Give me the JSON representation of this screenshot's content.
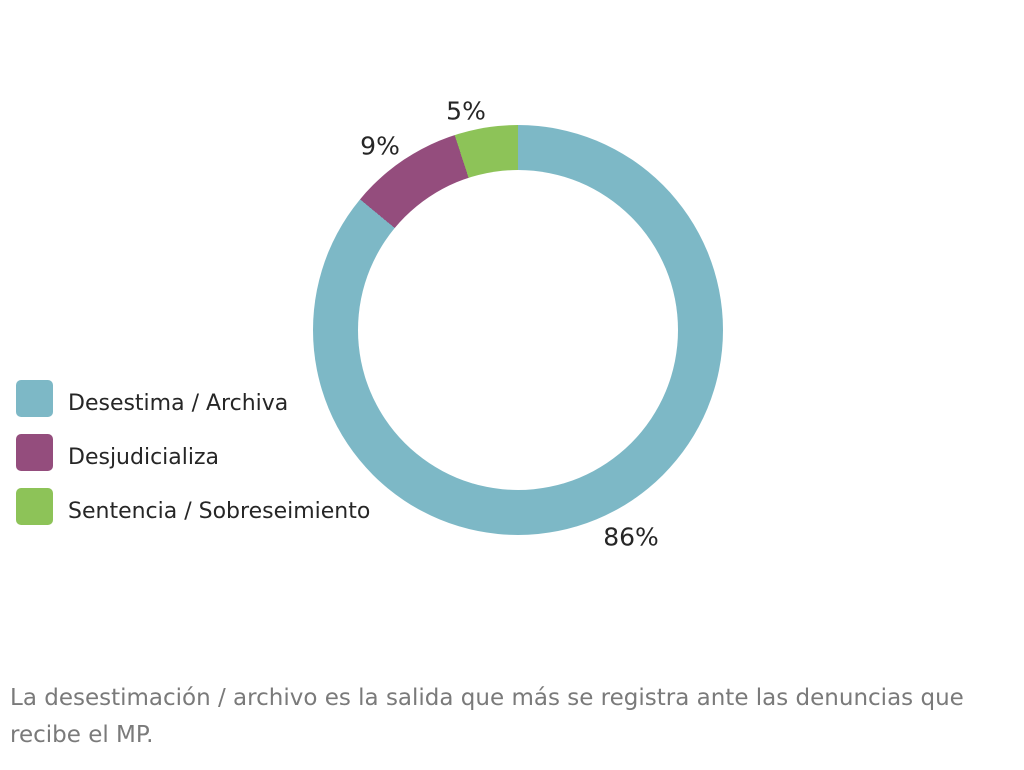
{
  "chart_data": {
    "type": "pie",
    "subtype": "donut",
    "title": "",
    "unit": "%",
    "direction": "clockwise",
    "start_angle_deg": 0,
    "hole_ratio": 0.78,
    "legend_position": "left",
    "series": [
      {
        "label": "Desestima / Archiva",
        "value": 86,
        "color": "#7db8c6",
        "data_label": "86%"
      },
      {
        "label": "Desjudicializa",
        "value": 9,
        "color": "#944d7d",
        "data_label": "9%"
      },
      {
        "label": "Sentencia / Sobreseimiento",
        "value": 5,
        "color": "#8dc358",
        "data_label": "5%"
      }
    ]
  },
  "caption": {
    "line1": "La desestimación / archivo es la salida que más se registra ante las denuncias que",
    "line2": "recibe el MP."
  }
}
